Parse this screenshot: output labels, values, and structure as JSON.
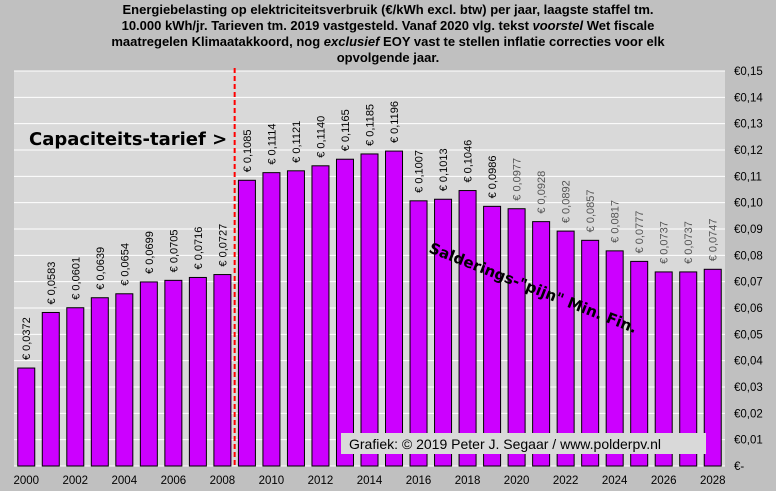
{
  "title_lines": [
    [
      "Energiebelasting op elektriciteitsverbruik (€/kWh excl. btw) per jaar, laagste staffel tm."
    ],
    [
      "10.000 kWh/jr. Tarieven tm. 2019 vastgesteld. Vanaf 2020 vlg. tekst ",
      {
        "i": "voorstel"
      },
      " Wet fiscale"
    ],
    [
      "maatregelen Klimaatakkoord, nog ",
      {
        "i": "exclusief"
      },
      " EOY vast te stellen inflatie correcties voor elk"
    ],
    [
      "opvolgende jaar."
    ]
  ],
  "annotations": {
    "capacity": "Capaciteits-tarief >",
    "saldering": "Salderings-\"pijn\" Min. Fin.",
    "credit": "Grafiek: © 2019 Peter J. Segaar / www.polderpv.nl"
  },
  "colors": {
    "plot_bg": "#d9d9d9",
    "bar_fill": "#cc00ff",
    "bar_stroke": "#000000",
    "grid": "#ffffff",
    "marker_line": "#ff0000",
    "label_past": "#000000",
    "label_future": "#555555"
  },
  "chart_data": {
    "type": "bar",
    "categories": [
      "2000",
      "2001",
      "2002",
      "2003",
      "2004",
      "2005",
      "2006",
      "2007",
      "2008",
      "2009",
      "2010",
      "2011",
      "2012",
      "2013",
      "2014",
      "2015",
      "2016",
      "2017",
      "2018",
      "2019",
      "2020",
      "2021",
      "2022",
      "2023",
      "2024",
      "2025",
      "2026",
      "2027",
      "2028"
    ],
    "values": [
      0.0372,
      0.0583,
      0.0601,
      0.0639,
      0.0654,
      0.0699,
      0.0705,
      0.0716,
      0.0727,
      0.1085,
      0.1114,
      0.1121,
      0.114,
      0.1165,
      0.1185,
      0.1196,
      0.1007,
      0.1013,
      0.1046,
      0.0986,
      0.0977,
      0.0928,
      0.0892,
      0.0857,
      0.0817,
      0.0777,
      0.0737,
      0.0737,
      0.0747
    ],
    "data_labels": [
      "€ 0,0372",
      "€ 0,0583",
      "€ 0,0601",
      "€ 0,0639",
      "€ 0,0654",
      "€ 0,0699",
      "€ 0,0705",
      "€ 0,0716",
      "€ 0,0727",
      "€ 0,1085",
      "€ 0,1114",
      "€ 0,1121",
      "€ 0,1140",
      "€ 0,1165",
      "€ 0,1185",
      "€ 0,1196",
      "€ 0,1007",
      "€ 0,1013",
      "€ 0,1046",
      "€ 0,0986",
      "€ 0,0977",
      "€ 0,0928",
      "€ 0,0892",
      "€ 0,0857",
      "€ 0,0817",
      "€ 0,0777",
      "€ 0,0737",
      "€ 0,0737",
      "€ 0,0747"
    ],
    "x_tick_labels": [
      "2000",
      "2002",
      "2004",
      "2006",
      "2008",
      "2010",
      "2012",
      "2014",
      "2016",
      "2018",
      "2020",
      "2022",
      "2024",
      "2026",
      "2028"
    ],
    "y_ticks": [
      0,
      0.01,
      0.02,
      0.03,
      0.04,
      0.05,
      0.06,
      0.07,
      0.08,
      0.09,
      0.1,
      0.11,
      0.12,
      0.13,
      0.14,
      0.15
    ],
    "y_tick_labels": [
      "€-",
      "€0,01",
      "€0,02",
      "€0,03",
      "€0,04",
      "€0,05",
      "€0,06",
      "€0,07",
      "€0,08",
      "€0,09",
      "€0,10",
      "€0,11",
      "€0,12",
      "€0,13",
      "€0,14",
      "€0,15"
    ],
    "ylim": [
      0,
      0.15
    ],
    "y_axis_side": "right",
    "grid": true,
    "marker_between": [
      "2008",
      "2009"
    ],
    "future_from": "2020",
    "xlabel": "",
    "ylabel": ""
  }
}
